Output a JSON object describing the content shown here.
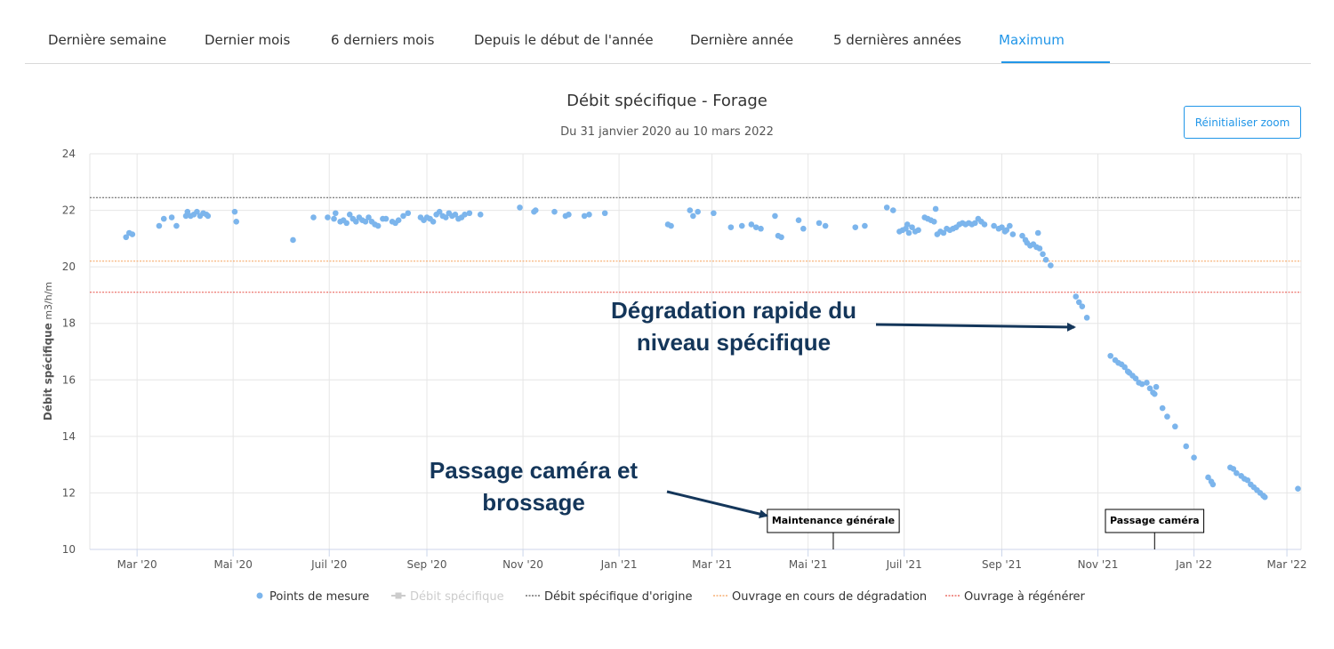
{
  "tabs": [
    {
      "label": "Dernière semaine",
      "active": false
    },
    {
      "label": "Dernier mois",
      "active": false
    },
    {
      "label": "6 derniers mois",
      "active": false
    },
    {
      "label": "Depuis le début de l'année",
      "active": false
    },
    {
      "label": "Dernière année",
      "active": false
    },
    {
      "label": "5 dernières années",
      "active": false
    },
    {
      "label": "Maximum",
      "active": true
    }
  ],
  "reset_zoom_label": "Réinitialiser zoom",
  "callouts": {
    "degradation_line1": "Dégradation rapide du",
    "degradation_line2": "niveau spécifique",
    "camera_line1": "Passage caméra et",
    "camera_line2": "brossage"
  },
  "chart_data": {
    "type": "scatter",
    "title": "Débit spécifique - Forage",
    "subtitle": "Du 31 janvier 2020 au 10 mars 2022",
    "ylabel": "Débit spécifique",
    "yunit": "m3/h/m",
    "ylim": [
      10,
      24
    ],
    "yticks": [
      10,
      12,
      14,
      16,
      18,
      20,
      22,
      24
    ],
    "xlim": [
      "2020-01-31",
      "2022-03-10"
    ],
    "xticks": [
      {
        "date": "2020-03-01",
        "label": "Mar '20"
      },
      {
        "date": "2020-05-01",
        "label": "Mai '20"
      },
      {
        "date": "2020-07-01",
        "label": "Juil '20"
      },
      {
        "date": "2020-09-01",
        "label": "Sep '20"
      },
      {
        "date": "2020-11-01",
        "label": "Nov '20"
      },
      {
        "date": "2021-01-01",
        "label": "Jan '21"
      },
      {
        "date": "2021-03-01",
        "label": "Mar '21"
      },
      {
        "date": "2021-05-01",
        "label": "Mai '21"
      },
      {
        "date": "2021-07-01",
        "label": "Juil '21"
      },
      {
        "date": "2021-09-01",
        "label": "Sep '21"
      },
      {
        "date": "2021-11-01",
        "label": "Nov '21"
      },
      {
        "date": "2022-01-01",
        "label": "Jan '22"
      },
      {
        "date": "2022-03-01",
        "label": "Mar '22"
      }
    ],
    "grid": true,
    "legend_position": "bottom",
    "reference_lines": [
      {
        "name": "Débit spécifique d'origine",
        "y": 22.45,
        "color": "#555555"
      },
      {
        "name": "Ouvrage en cours de dégradation",
        "y": 20.2,
        "color": "#f5a05a"
      },
      {
        "name": "Ouvrage à régénérer",
        "y": 19.1,
        "color": "#e8534a"
      }
    ],
    "legend": [
      {
        "name": "Points de mesure",
        "color": "#7cb5ec",
        "symbol": "dot",
        "enabled": true
      },
      {
        "name": "Débit spécifique",
        "color": "#cccccc",
        "symbol": "square-line",
        "enabled": false
      },
      {
        "name": "Débit spécifique d'origine",
        "color": "#555555",
        "symbol": "dash",
        "enabled": true
      },
      {
        "name": "Ouvrage en cours de dégradation",
        "color": "#f5a05a",
        "symbol": "dash",
        "enabled": true
      },
      {
        "name": "Ouvrage à régénérer",
        "color": "#e8534a",
        "symbol": "dash",
        "enabled": true
      }
    ],
    "flags": [
      {
        "text": "Maintenance générale",
        "date": "2021-05-17"
      },
      {
        "text": "Passage caméra",
        "date": "2021-12-07"
      }
    ],
    "series": [
      {
        "name": "Points de mesure",
        "color": "#7cb5ec",
        "points": [
          [
            "2020-02-23",
            21.05
          ],
          [
            "2020-02-25",
            21.2
          ],
          [
            "2020-02-27",
            21.15
          ],
          [
            "2020-03-15",
            21.45
          ],
          [
            "2020-03-18",
            21.7
          ],
          [
            "2020-03-23",
            21.75
          ],
          [
            "2020-03-26",
            21.45
          ],
          [
            "2020-04-01",
            21.8
          ],
          [
            "2020-04-02",
            21.95
          ],
          [
            "2020-04-04",
            21.8
          ],
          [
            "2020-04-06",
            21.85
          ],
          [
            "2020-04-08",
            21.95
          ],
          [
            "2020-04-10",
            21.8
          ],
          [
            "2020-04-12",
            21.9
          ],
          [
            "2020-04-14",
            21.85
          ],
          [
            "2020-04-15",
            21.8
          ],
          [
            "2020-05-02",
            21.95
          ],
          [
            "2020-05-03",
            21.6
          ],
          [
            "2020-06-08",
            20.95
          ],
          [
            "2020-06-21",
            21.75
          ],
          [
            "2020-06-30",
            21.75
          ],
          [
            "2020-07-04",
            21.7
          ],
          [
            "2020-07-05",
            21.9
          ],
          [
            "2020-07-08",
            21.6
          ],
          [
            "2020-07-10",
            21.65
          ],
          [
            "2020-07-12",
            21.55
          ],
          [
            "2020-07-14",
            21.85
          ],
          [
            "2020-07-16",
            21.7
          ],
          [
            "2020-07-18",
            21.6
          ],
          [
            "2020-07-20",
            21.75
          ],
          [
            "2020-07-22",
            21.65
          ],
          [
            "2020-07-24",
            21.6
          ],
          [
            "2020-07-26",
            21.75
          ],
          [
            "2020-07-28",
            21.6
          ],
          [
            "2020-07-30",
            21.5
          ],
          [
            "2020-08-01",
            21.45
          ],
          [
            "2020-08-04",
            21.7
          ],
          [
            "2020-08-06",
            21.7
          ],
          [
            "2020-08-10",
            21.6
          ],
          [
            "2020-08-12",
            21.55
          ],
          [
            "2020-08-14",
            21.65
          ],
          [
            "2020-08-17",
            21.8
          ],
          [
            "2020-08-20",
            21.9
          ],
          [
            "2020-08-28",
            21.75
          ],
          [
            "2020-08-30",
            21.65
          ],
          [
            "2020-09-01",
            21.75
          ],
          [
            "2020-09-03",
            21.7
          ],
          [
            "2020-09-05",
            21.6
          ],
          [
            "2020-09-07",
            21.85
          ],
          [
            "2020-09-09",
            21.95
          ],
          [
            "2020-09-11",
            21.8
          ],
          [
            "2020-09-13",
            21.75
          ],
          [
            "2020-09-15",
            21.9
          ],
          [
            "2020-09-17",
            21.8
          ],
          [
            "2020-09-19",
            21.85
          ],
          [
            "2020-09-21",
            21.7
          ],
          [
            "2020-09-23",
            21.75
          ],
          [
            "2020-09-25",
            21.85
          ],
          [
            "2020-09-28",
            21.9
          ],
          [
            "2020-10-05",
            21.85
          ],
          [
            "2020-10-30",
            22.1
          ],
          [
            "2020-11-08",
            21.95
          ],
          [
            "2020-11-09",
            22.0
          ],
          [
            "2020-11-21",
            21.95
          ],
          [
            "2020-11-28",
            21.8
          ],
          [
            "2020-11-30",
            21.85
          ],
          [
            "2020-12-10",
            21.8
          ],
          [
            "2020-12-13",
            21.85
          ],
          [
            "2020-12-23",
            21.9
          ],
          [
            "2021-02-01",
            21.5
          ],
          [
            "2021-02-03",
            21.45
          ],
          [
            "2021-02-15",
            22.0
          ],
          [
            "2021-02-17",
            21.8
          ],
          [
            "2021-02-20",
            21.95
          ],
          [
            "2021-03-02",
            21.9
          ],
          [
            "2021-03-13",
            21.4
          ],
          [
            "2021-03-20",
            21.45
          ],
          [
            "2021-03-26",
            21.5
          ],
          [
            "2021-03-29",
            21.4
          ],
          [
            "2021-04-01",
            21.35
          ],
          [
            "2021-04-10",
            21.8
          ],
          [
            "2021-04-12",
            21.1
          ],
          [
            "2021-04-14",
            21.05
          ],
          [
            "2021-04-25",
            21.65
          ],
          [
            "2021-04-28",
            21.35
          ],
          [
            "2021-05-08",
            21.55
          ],
          [
            "2021-05-12",
            21.45
          ],
          [
            "2021-05-31",
            21.4
          ],
          [
            "2021-06-06",
            21.45
          ],
          [
            "2021-06-20",
            22.1
          ],
          [
            "2021-06-24",
            22.0
          ],
          [
            "2021-06-28",
            21.25
          ],
          [
            "2021-06-30",
            21.3
          ],
          [
            "2021-07-02",
            21.35
          ],
          [
            "2021-07-03",
            21.5
          ],
          [
            "2021-07-04",
            21.2
          ],
          [
            "2021-07-06",
            21.4
          ],
          [
            "2021-07-08",
            21.25
          ],
          [
            "2021-07-10",
            21.3
          ],
          [
            "2021-07-14",
            21.75
          ],
          [
            "2021-07-16",
            21.7
          ],
          [
            "2021-07-18",
            21.65
          ],
          [
            "2021-07-20",
            21.6
          ],
          [
            "2021-07-21",
            22.05
          ],
          [
            "2021-07-22",
            21.15
          ],
          [
            "2021-07-24",
            21.25
          ],
          [
            "2021-07-26",
            21.2
          ],
          [
            "2021-07-28",
            21.35
          ],
          [
            "2021-07-30",
            21.3
          ],
          [
            "2021-08-01",
            21.35
          ],
          [
            "2021-08-03",
            21.4
          ],
          [
            "2021-08-05",
            21.5
          ],
          [
            "2021-08-07",
            21.55
          ],
          [
            "2021-08-09",
            21.5
          ],
          [
            "2021-08-11",
            21.55
          ],
          [
            "2021-08-13",
            21.5
          ],
          [
            "2021-08-15",
            21.55
          ],
          [
            "2021-08-17",
            21.7
          ],
          [
            "2021-08-19",
            21.6
          ],
          [
            "2021-08-21",
            21.5
          ],
          [
            "2021-08-27",
            21.45
          ],
          [
            "2021-08-30",
            21.35
          ],
          [
            "2021-09-01",
            21.4
          ],
          [
            "2021-09-03",
            21.25
          ],
          [
            "2021-09-04",
            21.3
          ],
          [
            "2021-09-06",
            21.45
          ],
          [
            "2021-09-08",
            21.15
          ],
          [
            "2021-09-14",
            21.1
          ],
          [
            "2021-09-16",
            20.95
          ],
          [
            "2021-09-17",
            20.85
          ],
          [
            "2021-09-19",
            20.75
          ],
          [
            "2021-09-21",
            20.8
          ],
          [
            "2021-09-23",
            20.7
          ],
          [
            "2021-09-24",
            21.2
          ],
          [
            "2021-09-25",
            20.65
          ],
          [
            "2021-09-27",
            20.45
          ],
          [
            "2021-09-29",
            20.25
          ],
          [
            "2021-10-02",
            20.05
          ],
          [
            "2021-10-18",
            18.95
          ],
          [
            "2021-10-20",
            18.75
          ],
          [
            "2021-10-22",
            18.6
          ],
          [
            "2021-10-25",
            18.2
          ],
          [
            "2021-11-09",
            16.85
          ],
          [
            "2021-11-12",
            16.7
          ],
          [
            "2021-11-14",
            16.6
          ],
          [
            "2021-11-16",
            16.55
          ],
          [
            "2021-11-18",
            16.45
          ],
          [
            "2021-11-20",
            16.3
          ],
          [
            "2021-11-21",
            16.25
          ],
          [
            "2021-11-23",
            16.15
          ],
          [
            "2021-11-25",
            16.05
          ],
          [
            "2021-11-27",
            15.9
          ],
          [
            "2021-11-29",
            15.85
          ],
          [
            "2021-12-02",
            15.9
          ],
          [
            "2021-12-04",
            15.7
          ],
          [
            "2021-12-06",
            15.55
          ],
          [
            "2021-12-07",
            15.5
          ],
          [
            "2021-12-08",
            15.75
          ],
          [
            "2021-12-12",
            15.0
          ],
          [
            "2021-12-15",
            14.7
          ],
          [
            "2021-12-20",
            14.35
          ],
          [
            "2021-12-27",
            13.65
          ],
          [
            "2022-01-01",
            13.25
          ],
          [
            "2022-01-10",
            12.55
          ],
          [
            "2022-01-12",
            12.4
          ],
          [
            "2022-01-13",
            12.3
          ],
          [
            "2022-01-24",
            12.9
          ],
          [
            "2022-01-26",
            12.85
          ],
          [
            "2022-01-28",
            12.7
          ],
          [
            "2022-01-31",
            12.6
          ],
          [
            "2022-02-02",
            12.5
          ],
          [
            "2022-02-04",
            12.45
          ],
          [
            "2022-02-06",
            12.3
          ],
          [
            "2022-02-08",
            12.2
          ],
          [
            "2022-02-10",
            12.1
          ],
          [
            "2022-02-12",
            12.0
          ],
          [
            "2022-02-14",
            11.9
          ],
          [
            "2022-02-15",
            11.85
          ],
          [
            "2022-03-08",
            12.15
          ]
        ]
      }
    ]
  }
}
